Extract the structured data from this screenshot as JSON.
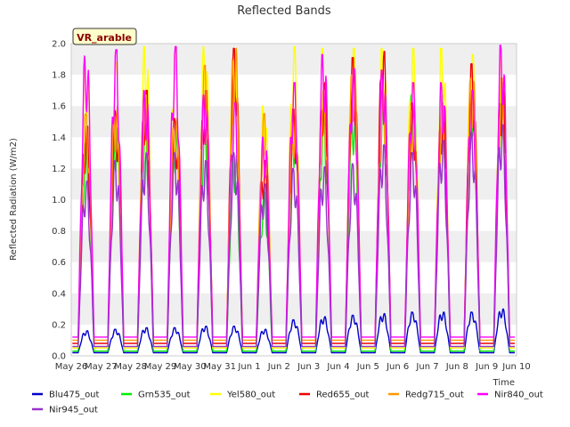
{
  "chart_data": {
    "type": "line",
    "title": "Reflected Bands",
    "ylabel": "Reflected Radiation (W/m2)",
    "xlabel": "Time",
    "badge": "VR_arable",
    "ylim": [
      0,
      2.0
    ],
    "yticks": [
      0.0,
      0.2,
      0.4,
      0.6,
      0.8,
      1.0,
      1.2,
      1.4,
      1.6,
      1.8,
      2.0
    ],
    "yticklabels": [
      "0.0",
      "0.2",
      "0.4",
      "0.6",
      "0.8",
      "1.0",
      "1.2",
      "1.4",
      "1.6",
      "1.8",
      "2.0"
    ],
    "xlim": [
      "2024-05-26",
      "2024-06-10"
    ],
    "xticklabels": [
      "May 26",
      "May 27",
      "May 28",
      "May 29",
      "May 30",
      "May 31",
      "Jun 1",
      "Jun 2",
      "Jun 3",
      "Jun 4",
      "Jun 5",
      "Jun 6",
      "Jun 7",
      "Jun 8",
      "Jun 9",
      "Jun 10"
    ],
    "grid_bands": true,
    "legend_position": "bottom",
    "days": [
      "May 26",
      "May 27",
      "May 28",
      "May 29",
      "May 30",
      "May 31",
      "Jun 1",
      "Jun 2",
      "Jun 3",
      "Jun 4",
      "Jun 5",
      "Jun 6",
      "Jun 7",
      "Jun 8",
      "Jun 9"
    ],
    "series": [
      {
        "name": "Blu475_out",
        "color": "#0000cc",
        "night": 0.02,
        "daily_peak": [
          0.16,
          0.17,
          0.18,
          0.18,
          0.19,
          0.19,
          0.17,
          0.23,
          0.25,
          0.26,
          0.27,
          0.28,
          0.28,
          0.28,
          0.3
        ]
      },
      {
        "name": "Grn535_out",
        "color": "#00ee00",
        "night": 0.03,
        "daily_peak": [
          1.36,
          1.46,
          1.48,
          1.45,
          1.45,
          1.3,
          1.05,
          1.5,
          1.55,
          1.6,
          1.65,
          1.67,
          1.67,
          1.73,
          1.74
        ]
      },
      {
        "name": "Yel580_out",
        "color": "#ffff00",
        "night": 0.05,
        "daily_peak": [
          1.86,
          1.88,
          1.98,
          1.98,
          1.98,
          1.93,
          1.6,
          1.98,
          1.97,
          1.97,
          1.97,
          1.97,
          1.97,
          1.93,
          1.92
        ]
      },
      {
        "name": "Red655_out",
        "color": "#ee0000",
        "night": 0.08,
        "daily_peak": [
          1.47,
          1.57,
          1.7,
          1.52,
          1.7,
          1.97,
          1.25,
          1.58,
          1.75,
          1.91,
          1.95,
          1.62,
          1.6,
          1.87,
          1.75
        ]
      },
      {
        "name": "Redg715_out",
        "color": "#ff9900",
        "night": 0.1,
        "daily_peak": [
          1.55,
          1.6,
          1.67,
          1.52,
          1.86,
          1.97,
          1.55,
          1.55,
          1.7,
          1.85,
          1.7,
          1.6,
          1.62,
          1.8,
          1.78
        ]
      },
      {
        "name": "Nir840_out",
        "color": "#ff00ff",
        "night": 0.12,
        "daily_peak": [
          1.92,
          1.96,
          1.7,
          1.98,
          1.67,
          1.62,
          1.4,
          1.75,
          1.93,
          1.84,
          1.83,
          1.75,
          1.75,
          1.7,
          1.99
        ]
      },
      {
        "name": "Nir945_out",
        "color": "#9933cc",
        "night": 0.06,
        "daily_peak": [
          1.12,
          1.25,
          1.3,
          1.3,
          1.25,
          1.3,
          1.1,
          1.2,
          1.21,
          1.23,
          1.35,
          1.3,
          1.38,
          1.43,
          1.48
        ]
      }
    ]
  }
}
